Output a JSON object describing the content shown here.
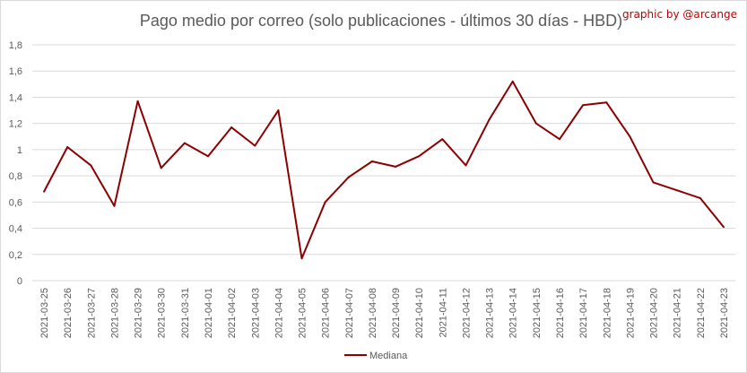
{
  "chart_data": {
    "type": "line",
    "title": "Pago medio por correo (solo publicaciones - últimos 30 días - HBD)",
    "credit": "graphic by @arcange",
    "xlabel": "",
    "ylabel": "",
    "ylim": [
      0,
      1.8
    ],
    "yticks": [
      "0",
      "0,2",
      "0,4",
      "0,6",
      "0,8",
      "1",
      "1,2",
      "1,4",
      "1,6",
      "1,8"
    ],
    "grid": true,
    "legend_position": "bottom",
    "categories": [
      "2021-03-25",
      "2021-03-26",
      "2021-03-27",
      "2021-03-28",
      "2021-03-29",
      "2021-03-30",
      "2021-03-31",
      "2021-04-01",
      "2021-04-02",
      "2021-04-03",
      "2021-04-04",
      "2021-04-05",
      "2021-04-06",
      "2021-04-07",
      "2021-04-08",
      "2021-04-09",
      "2021-04-10",
      "2021-04-11",
      "2021-04-12",
      "2021-04-13",
      "2021-04-14",
      "2021-04-15",
      "2021-04-16",
      "2021-04-17",
      "2021-04-18",
      "2021-04-19",
      "2021-04-20",
      "2021-04-21",
      "2021-04-22",
      "2021-04-23"
    ],
    "series": [
      {
        "name": "Mediana",
        "color": "#8b0000",
        "values": [
          0.68,
          1.02,
          0.88,
          0.57,
          1.37,
          0.86,
          1.05,
          0.95,
          1.17,
          1.03,
          1.3,
          0.17,
          0.6,
          0.79,
          0.91,
          0.87,
          0.95,
          1.08,
          0.88,
          1.23,
          1.52,
          1.2,
          1.08,
          1.34,
          1.36,
          1.1,
          0.75,
          0.69,
          0.63,
          0.41
        ]
      }
    ]
  },
  "colors": {
    "grid": "#d9d9d9",
    "text": "#595959",
    "credit": "#c00000"
  }
}
